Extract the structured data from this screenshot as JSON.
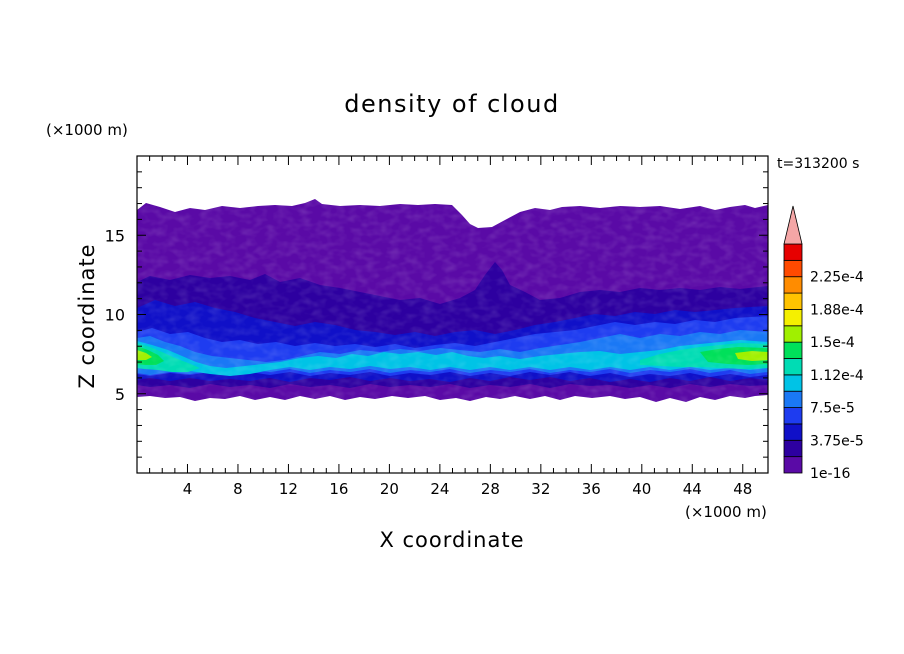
{
  "chart_data": {
    "type": "heatmap",
    "title": "density of cloud",
    "xlabel": "X coordinate",
    "ylabel": "Z coordinate",
    "x_unit": "(×1000 m)",
    "y_unit": "(×1000 m)",
    "time_label": "t=313200 s",
    "xlim": [
      0,
      50
    ],
    "ylim": [
      0,
      20
    ],
    "x_ticks": [
      4,
      8,
      12,
      16,
      20,
      24,
      28,
      32,
      36,
      40,
      44,
      48
    ],
    "y_ticks": [
      5,
      10,
      15
    ],
    "colorbar": {
      "levels": [
        1e-16,
        1.875e-05,
        3.75e-05,
        5.625e-05,
        7.5e-05,
        9.375e-05,
        0.0001125,
        0.00013125,
        0.00015,
        0.00016875,
        0.0001875,
        0.00020625,
        0.000225,
        0.00024375
      ],
      "labels": [
        "1e-16",
        "3.75e-5",
        "7.5e-5",
        "1.12e-4",
        "1.5e-4",
        "1.88e-4",
        "2.25e-4"
      ],
      "colors": [
        "#5a0aa6",
        "#2d00a0",
        "#1010c8",
        "#1e3cf0",
        "#1a78f5",
        "#00c3e6",
        "#00dcb4",
        "#00e05a",
        "#a0f000",
        "#f5f000",
        "#ffc300",
        "#ff8c00",
        "#ff4a00",
        "#e60000"
      ],
      "extend_color": "#f4a6a6"
    },
    "cloud_band": {
      "z_bottom_km": 5,
      "z_top_km_range": [
        15.5,
        17.2
      ],
      "core_layer_km": [
        6,
        8
      ],
      "core_max_approx": 0.00015,
      "core_peak_x_km": [
        [
          0,
          4
        ],
        [
          42,
          50
        ]
      ]
    }
  }
}
